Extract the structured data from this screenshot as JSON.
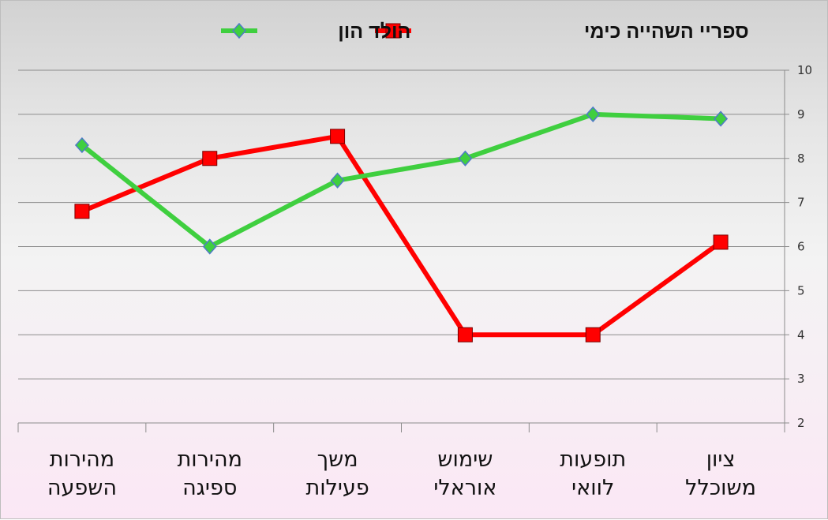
{
  "chart_data": {
    "type": "line",
    "categories": [
      [
        "ציון",
        "משוכלל"
      ],
      [
        "תופעות",
        "לוואי"
      ],
      [
        "שימוש",
        "אוראלי"
      ],
      [
        "משך",
        "פעילות"
      ],
      [
        "מהירות",
        "ספיגה"
      ],
      [
        "מהירות",
        "השפעה"
      ]
    ],
    "series": [
      {
        "name": "ספריי השהייה כימי",
        "color": "#ff0000",
        "marker": "square",
        "values": [
          6.1,
          4,
          4,
          8.5,
          8,
          6.8
        ]
      },
      {
        "name": "הולד הון",
        "color": "#3fcf3f",
        "marker": "diamond",
        "values": [
          8.9,
          9,
          8,
          7.5,
          6,
          8.3
        ]
      }
    ],
    "ylim": [
      2,
      10
    ],
    "yticks": [
      2,
      3,
      4,
      5,
      6,
      7,
      8,
      9,
      10
    ],
    "y_axis_side": "right",
    "x_axis_direction": "right-to-left",
    "legend_position": "top",
    "grid": true,
    "title": "",
    "xlabel": "",
    "ylabel": ""
  }
}
